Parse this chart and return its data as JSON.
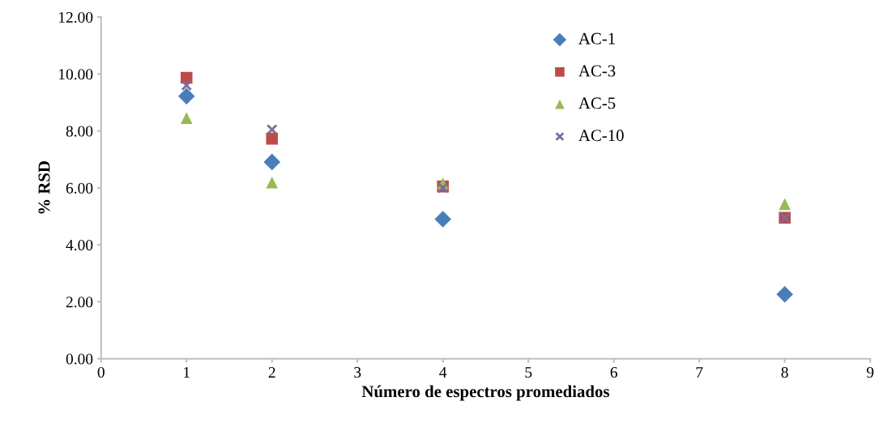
{
  "chart_data": {
    "type": "scatter",
    "xlabel": "Número de espectros promediados",
    "ylabel": "% RSD",
    "x": [
      1,
      2,
      4,
      8
    ],
    "series": [
      {
        "name": "AC-1",
        "color": "#4a7ebb",
        "marker": "diamond",
        "values": [
          9.22,
          6.91,
          4.9,
          2.26
        ]
      },
      {
        "name": "AC-3",
        "color": "#be4b48",
        "marker": "square",
        "values": [
          9.87,
          7.73,
          6.05,
          4.95
        ]
      },
      {
        "name": "AC-5",
        "color": "#98b954",
        "marker": "triangle",
        "values": [
          8.45,
          6.19,
          6.15,
          5.43
        ]
      },
      {
        "name": "AC-10",
        "color": "#7e6a9e",
        "marker": "cross",
        "values": [
          9.6,
          8.05,
          6.0,
          4.95
        ]
      }
    ],
    "xlim": [
      0,
      9
    ],
    "xticks": [
      0,
      1,
      2,
      3,
      4,
      5,
      6,
      7,
      8,
      9
    ],
    "ylim": [
      0,
      12
    ],
    "yticks": [
      {
        "value": 0,
        "label": "0.00"
      },
      {
        "value": 2,
        "label": "2.00"
      },
      {
        "value": 4,
        "label": "4.00"
      },
      {
        "value": 6,
        "label": "6.00"
      },
      {
        "value": 8,
        "label": "8.00"
      },
      {
        "value": 10,
        "label": "10.00"
      },
      {
        "value": 12,
        "label": "12.00"
      }
    ],
    "grid": false,
    "legend": "top right"
  }
}
